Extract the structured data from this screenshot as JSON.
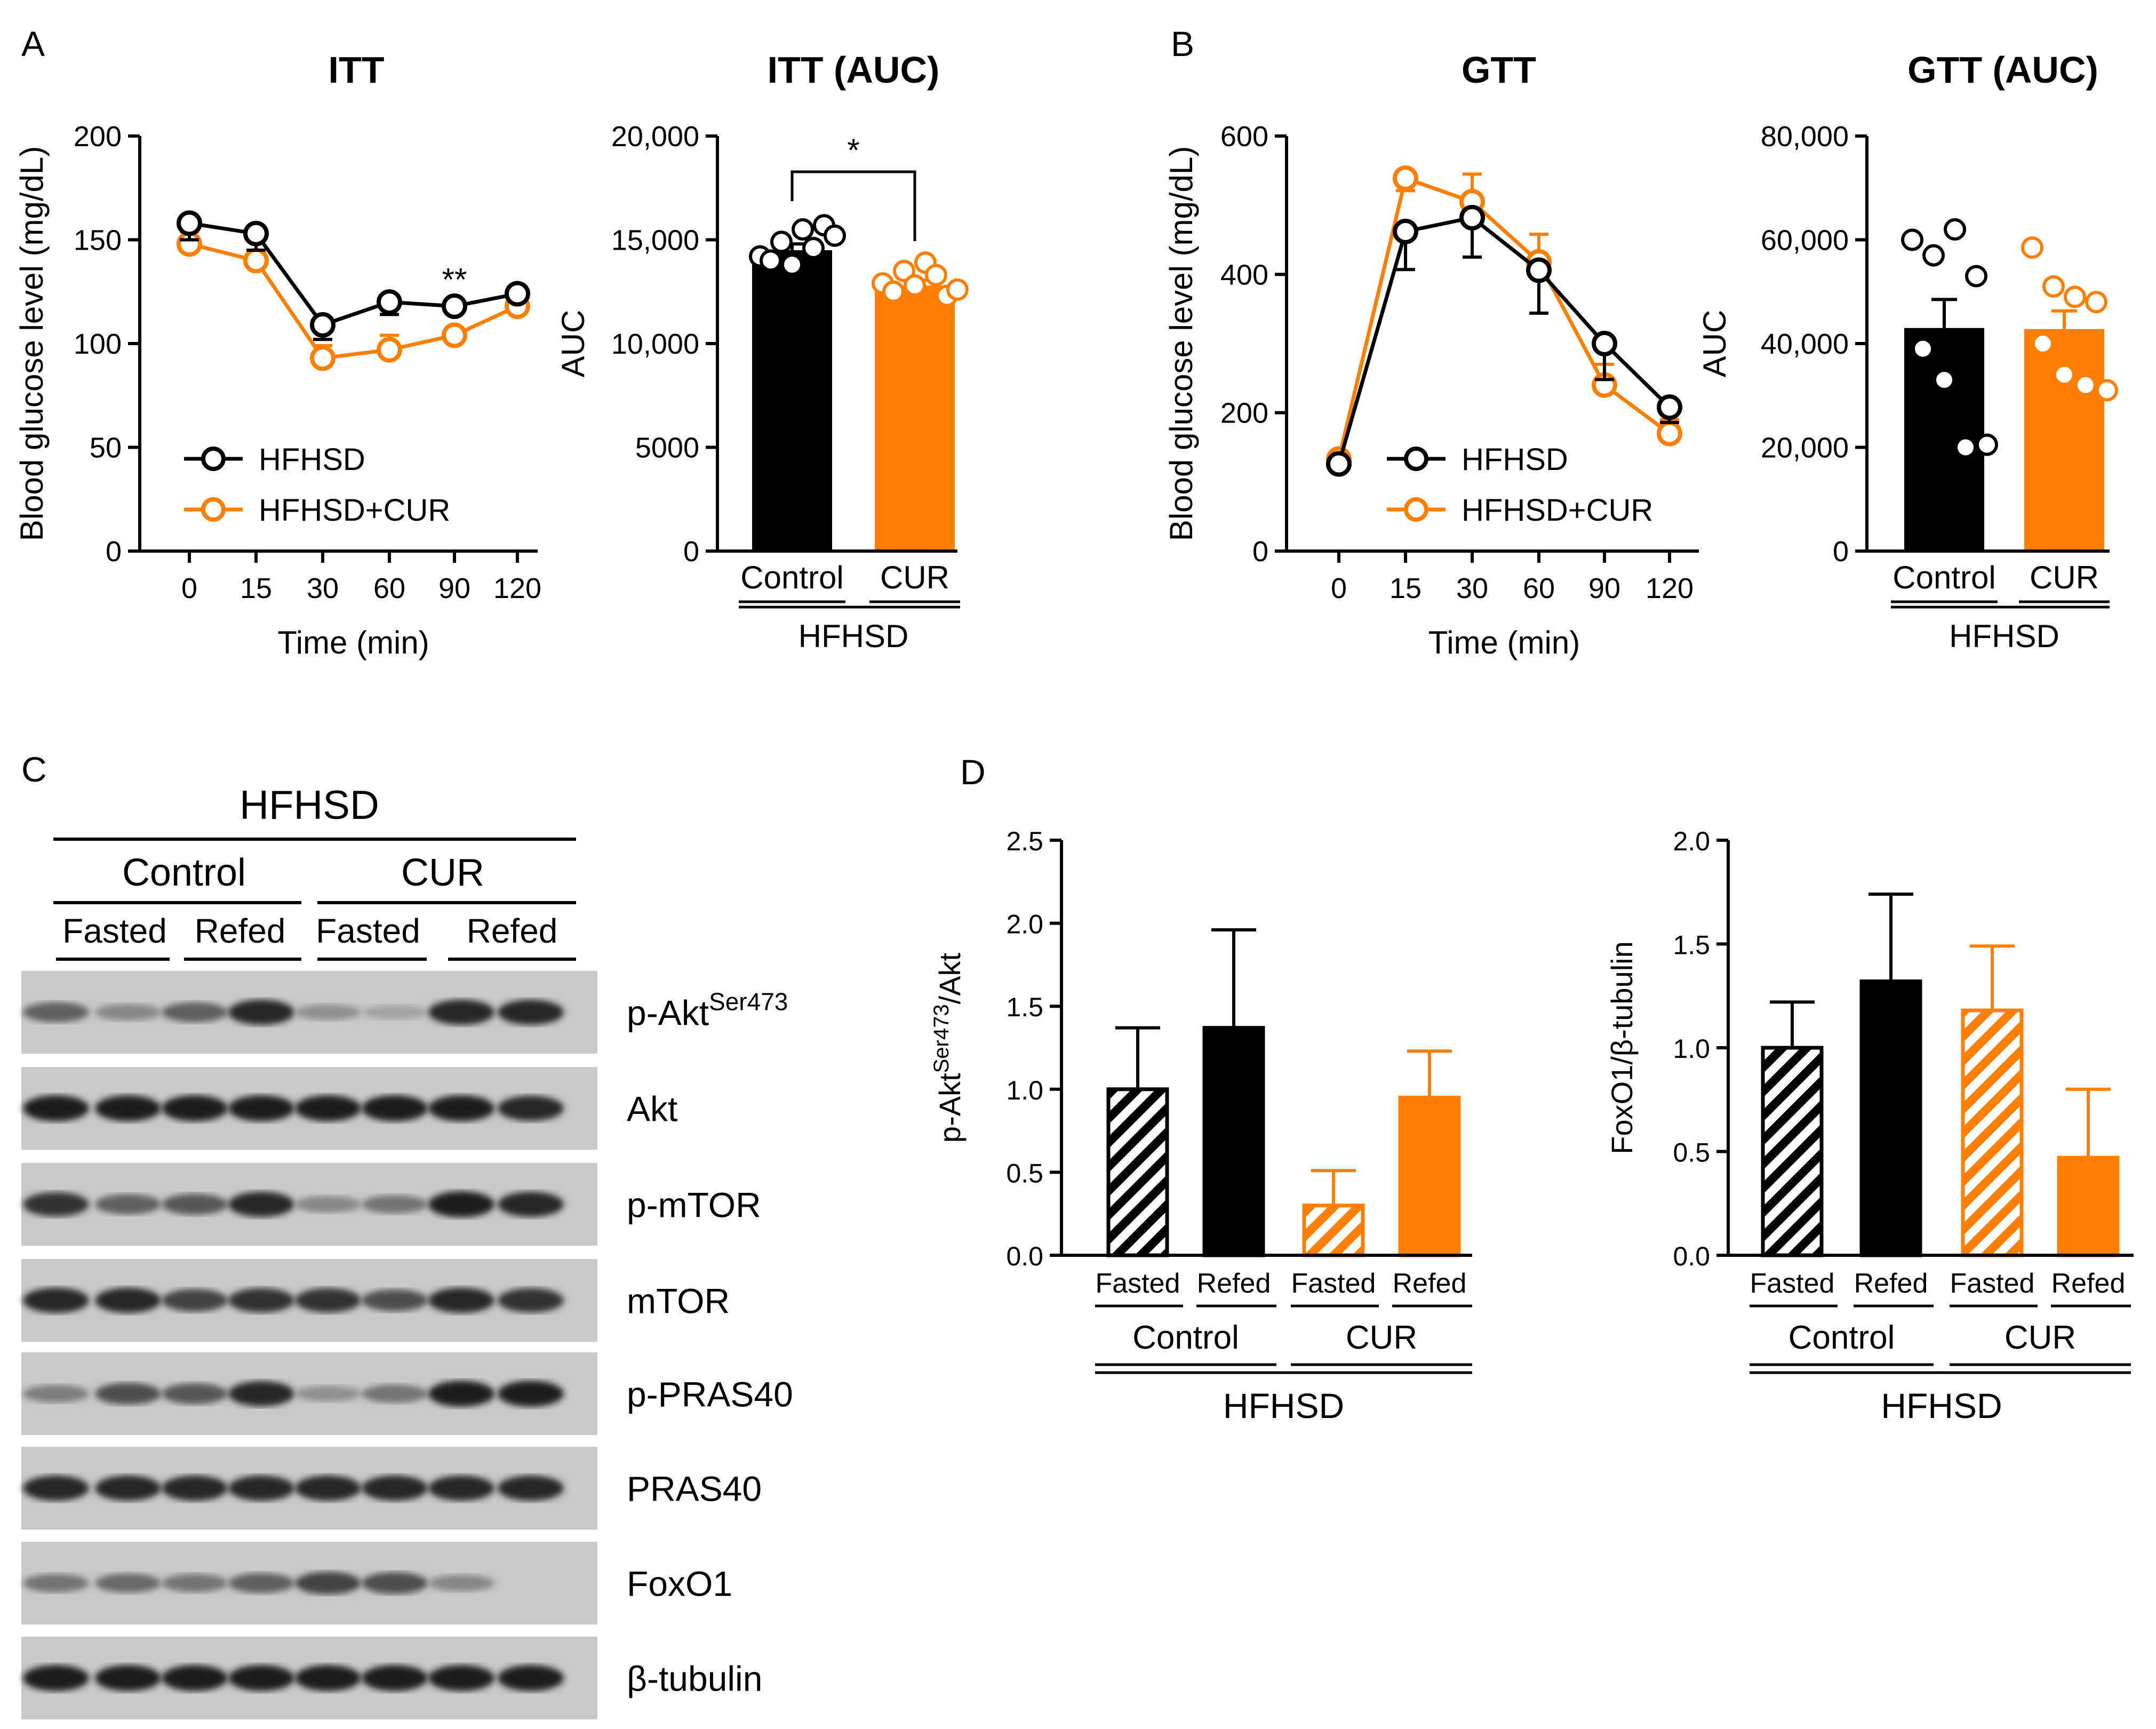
{
  "panels": {
    "A": "A",
    "B": "B",
    "C": "C",
    "D": "D"
  },
  "colors": {
    "hfhsd": "#000000",
    "cur": "#ff8000"
  },
  "chart_data": [
    {
      "id": "itt",
      "type": "line",
      "title": "ITT",
      "xlabel": "Time (min)",
      "ylabel": "Blood glucose level (mg/dL)",
      "categories": [
        "0",
        "15",
        "30",
        "60",
        "90",
        "120"
      ],
      "ylim": [
        0,
        200
      ],
      "yticks": [
        "0",
        "50",
        "100",
        "150",
        "200"
      ],
      "series": [
        {
          "name": "HFHSD",
          "values": [
            158,
            153,
            109,
            120,
            118,
            124
          ],
          "err": [
            8,
            8,
            7,
            6,
            3,
            3
          ]
        },
        {
          "name": "HFHSD+CUR",
          "values": [
            148,
            140,
            93,
            97,
            104,
            118
          ],
          "err": [
            6,
            10,
            6,
            7,
            3,
            4
          ]
        }
      ],
      "annotations": [
        "**"
      ]
    },
    {
      "id": "itt_auc",
      "type": "bar",
      "title": "ITT (AUC)",
      "ylabel": "AUC",
      "ylim": [
        0,
        20000
      ],
      "yticks": [
        "0",
        "5000",
        "10,000",
        "15,000",
        "20,000"
      ],
      "categories": [
        "Control",
        "CUR"
      ],
      "group_label": "HFHSD",
      "values": [
        14500,
        12800
      ],
      "err": [
        300,
        250
      ],
      "points": [
        [
          14200,
          14900,
          15500,
          15700,
          14000,
          13800,
          14600,
          15200
        ],
        [
          12900,
          13500,
          13900,
          12300,
          12500,
          12800,
          13300,
          12600
        ]
      ],
      "significance": "*"
    },
    {
      "id": "gtt",
      "type": "line",
      "title": "GTT",
      "xlabel": "Time (min)",
      "ylabel": "Blood glucose level (mg/dL)",
      "categories": [
        "0",
        "15",
        "30",
        "60",
        "90",
        "120"
      ],
      "ylim": [
        0,
        600
      ],
      "yticks": [
        "0",
        "200",
        "400",
        "600"
      ],
      "series": [
        {
          "name": "HFHSD",
          "values": [
            126,
            462,
            482,
            406,
            300,
            208
          ],
          "err": [
            5,
            55,
            57,
            62,
            52,
            22
          ]
        },
        {
          "name": "HFHSD+CUR",
          "values": [
            133,
            539,
            505,
            418,
            240,
            170
          ],
          "err": [
            5,
            18,
            40,
            40,
            30,
            20
          ]
        }
      ]
    },
    {
      "id": "gtt_auc",
      "type": "bar",
      "title": "GTT (AUC)",
      "ylabel": "AUC",
      "ylim": [
        0,
        80000
      ],
      "yticks": [
        "0",
        "20,000",
        "40,000",
        "60,000",
        "80,000"
      ],
      "categories": [
        "Control",
        "CUR"
      ],
      "group_label": "HFHSD",
      "values": [
        43000,
        42800
      ],
      "err": [
        5500,
        3500
      ],
      "points": [
        [
          60000,
          57000,
          62000,
          53000,
          39000,
          33000,
          20000,
          20500
        ],
        [
          58500,
          51000,
          49000,
          48000,
          40000,
          34000,
          32000,
          31000
        ]
      ]
    },
    {
      "id": "pakt",
      "type": "bar",
      "ylabel": "p-AktSer473/Akt",
      "ylabel_parts": {
        "base": "p-Akt",
        "sup": "Ser473",
        "rest": "/Akt"
      },
      "ylim": [
        0,
        2.5
      ],
      "yticks": [
        "0.0",
        "0.5",
        "1.0",
        "1.5",
        "2.0",
        "2.5"
      ],
      "categories": [
        "Fasted",
        "Refed",
        "Fasted",
        "Refed"
      ],
      "groups": [
        "Control",
        "CUR"
      ],
      "group_label": "HFHSD",
      "values": [
        1.0,
        1.37,
        0.3,
        0.95
      ],
      "err": [
        0.37,
        0.59,
        0.21,
        0.28
      ],
      "hatched": [
        true,
        false,
        true,
        false
      ]
    },
    {
      "id": "foxo1",
      "type": "bar",
      "ylabel": "FoxO1/β-tubulin",
      "ylim": [
        0,
        2.0
      ],
      "yticks": [
        "0.0",
        "0.5",
        "1.0",
        "1.5",
        "2.0"
      ],
      "categories": [
        "Fasted",
        "Refed",
        "Fasted",
        "Refed"
      ],
      "groups": [
        "Control",
        "CUR"
      ],
      "group_label": "HFHSD",
      "values": [
        1.0,
        1.32,
        1.18,
        0.47
      ],
      "err": [
        0.22,
        0.42,
        0.31,
        0.33
      ],
      "hatched": [
        true,
        false,
        true,
        false
      ]
    }
  ],
  "blot": {
    "header": "HFHSD",
    "groups": [
      "Control",
      "CUR"
    ],
    "conditions": [
      "Fasted",
      "Refed",
      "Fasted",
      "Refed"
    ],
    "rows": [
      {
        "label": "p-Akt",
        "sup": "Ser473",
        "intensity": [
          0.55,
          0.35,
          0.55,
          0.85,
          0.3,
          0.2,
          0.85,
          0.85
        ]
      },
      {
        "label": "Akt",
        "sup": "",
        "intensity": [
          0.9,
          0.9,
          0.9,
          0.9,
          0.9,
          0.9,
          0.9,
          0.85
        ]
      },
      {
        "label": "p-mTOR",
        "sup": "",
        "intensity": [
          0.8,
          0.55,
          0.6,
          0.85,
          0.35,
          0.45,
          0.9,
          0.85
        ]
      },
      {
        "label": "mTOR",
        "sup": "",
        "intensity": [
          0.85,
          0.85,
          0.7,
          0.8,
          0.8,
          0.65,
          0.85,
          0.8
        ]
      },
      {
        "label": "p-PRAS40",
        "sup": "",
        "intensity": [
          0.4,
          0.65,
          0.6,
          0.85,
          0.3,
          0.45,
          0.9,
          0.9
        ]
      },
      {
        "label": "PRAS40",
        "sup": "",
        "intensity": [
          0.85,
          0.85,
          0.85,
          0.85,
          0.85,
          0.85,
          0.85,
          0.85
        ]
      },
      {
        "label": "FoxO1",
        "sup": "",
        "intensity": [
          0.45,
          0.5,
          0.45,
          0.55,
          0.7,
          0.65,
          0.35,
          0.05
        ]
      },
      {
        "label": "β-tubulin",
        "sup": "",
        "intensity": [
          0.9,
          0.9,
          0.9,
          0.9,
          0.9,
          0.9,
          0.9,
          0.9
        ]
      }
    ]
  }
}
